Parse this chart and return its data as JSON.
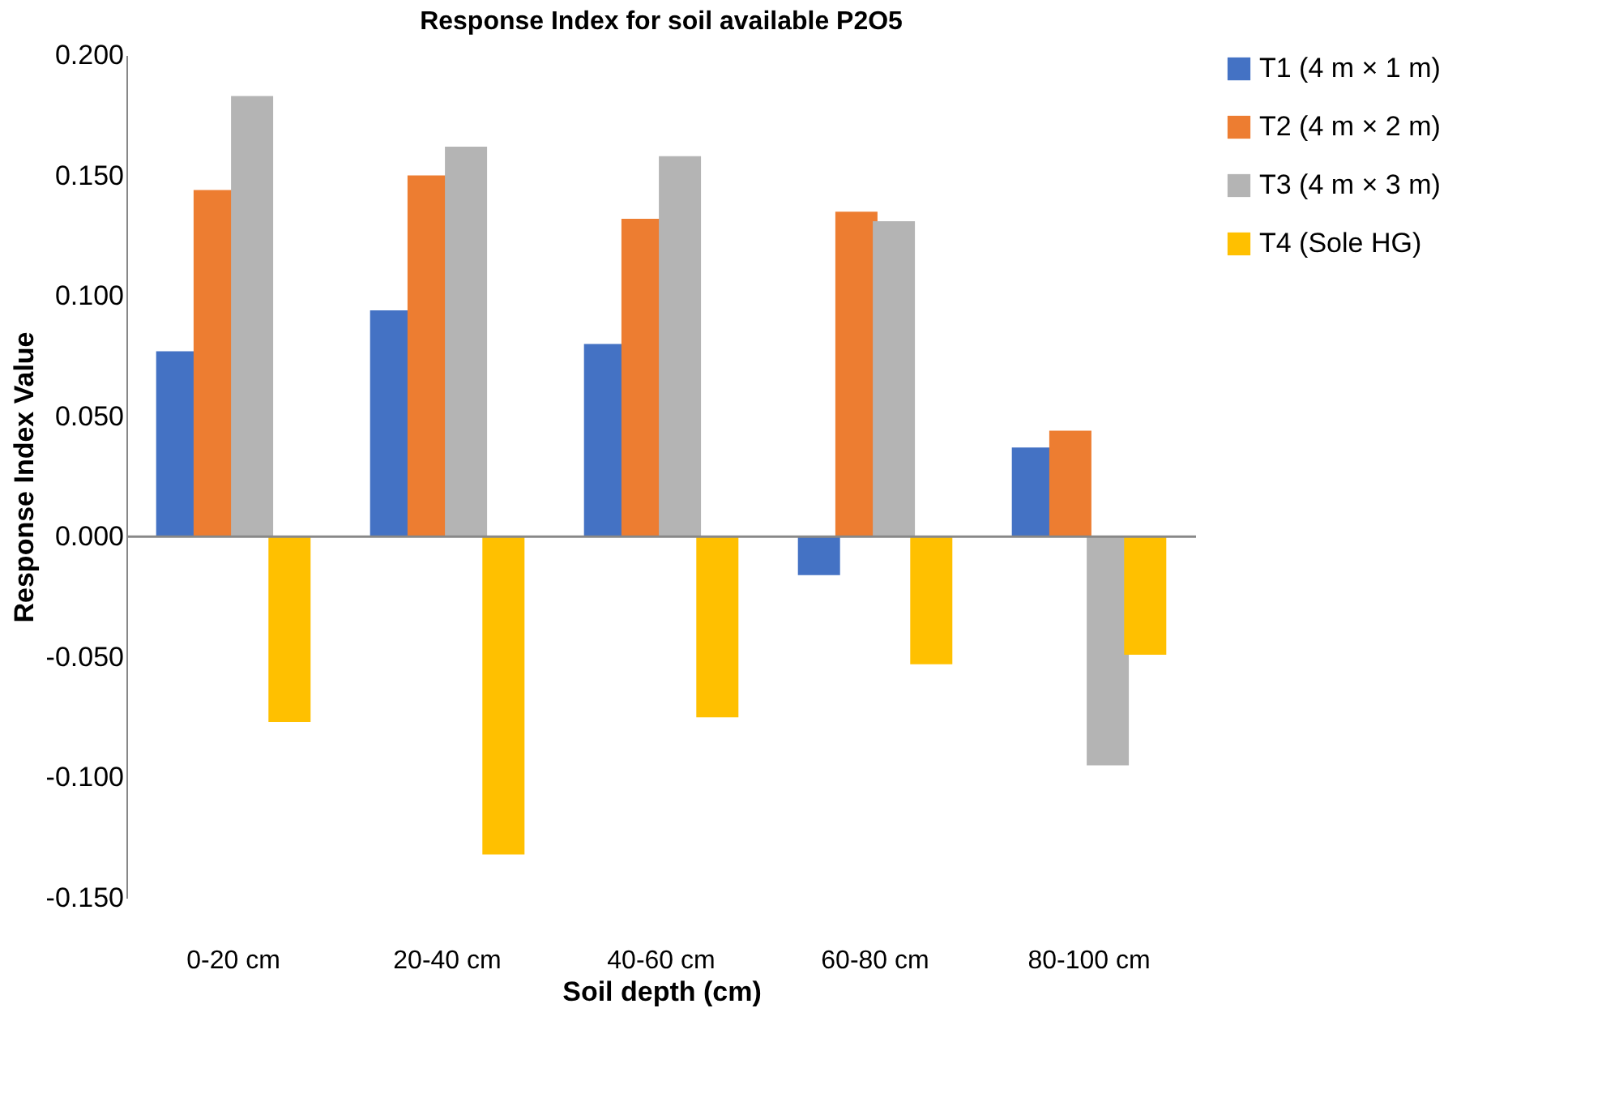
{
  "chart_data": {
    "type": "bar",
    "title": "Response Index for soil available P2O5",
    "xlabel": "Soil depth (cm)",
    "ylabel": "Response Index Value",
    "categories": [
      "0-20 cm",
      "20-40 cm",
      "40-60 cm",
      "60-80 cm",
      "80-100 cm"
    ],
    "series": [
      {
        "name": "T1 (4 m × 1 m)",
        "color": "#4472c4",
        "values": [
          0.077,
          0.094,
          0.08,
          -0.016,
          0.037
        ]
      },
      {
        "name": "T2 (4 m × 2 m)",
        "color": "#ed7d31",
        "values": [
          0.144,
          0.15,
          0.132,
          0.135,
          0.044
        ]
      },
      {
        "name": "T3 (4 m × 3 m)",
        "color": "#b4b4b4",
        "values": [
          0.183,
          0.162,
          0.158,
          0.131,
          -0.095
        ]
      },
      {
        "name": "T4 (Sole HG)",
        "color": "#ffc000",
        "values": [
          -0.077,
          -0.132,
          -0.075,
          -0.053,
          -0.049
        ]
      }
    ],
    "ylim": [
      -0.15,
      0.2
    ],
    "yticks": [
      {
        "value": -0.15,
        "label": "-0.150"
      },
      {
        "value": -0.1,
        "label": "-0.100"
      },
      {
        "value": -0.05,
        "label": "-0.050"
      },
      {
        "value": 0,
        "label": "0.000"
      },
      {
        "value": 0.05,
        "label": "0.050"
      },
      {
        "value": 0.1,
        "label": "0.100"
      },
      {
        "value": 0.15,
        "label": "0.150"
      },
      {
        "value": 0.2,
        "label": "0.200"
      }
    ],
    "ref_lines": [
      {
        "axis": "y",
        "value": 0,
        "color": "#888888"
      }
    ],
    "grid": false,
    "legend": "right"
  }
}
